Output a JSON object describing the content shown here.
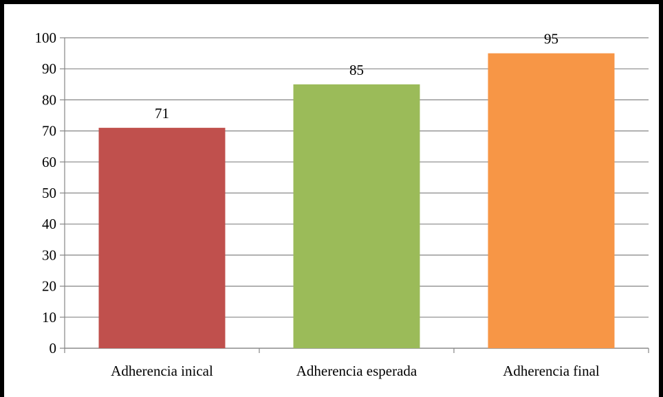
{
  "chart_data": {
    "type": "bar",
    "categories": [
      "Adherencia inical",
      "Adherencia esperada",
      "Adherencia final"
    ],
    "values": [
      71,
      85,
      95
    ],
    "colors": [
      "#C0504D",
      "#9BBB59",
      "#F79646"
    ],
    "data_labels": [
      "71",
      "85",
      "95"
    ],
    "y_ticks": [
      "0",
      "10",
      "20",
      "30",
      "40",
      "50",
      "60",
      "70",
      "80",
      "90",
      "100"
    ],
    "ylim": [
      0,
      100
    ],
    "grid": true,
    "legend": "none"
  }
}
